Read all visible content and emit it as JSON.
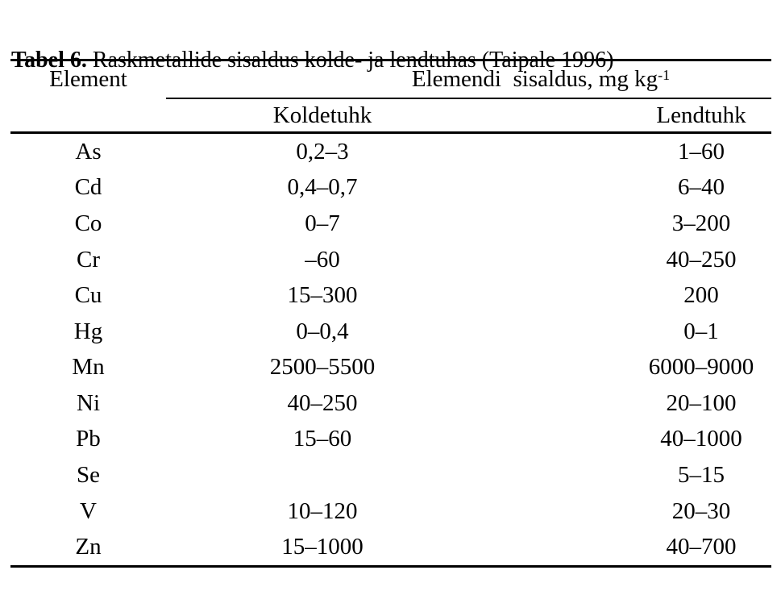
{
  "caption": {
    "label": "Tabel 6.",
    "text": " Raskmetallide sisaldus kolde- ja lendtuhas (Taipale 1996)"
  },
  "table": {
    "col1_header": "Element",
    "span_header": {
      "prefix": "Elemendi  sisaldus, mg kg",
      "superscript": "-1"
    },
    "sub_headers": {
      "koldetuhk": "Koldetuhk",
      "lendtuhk": "Lendtuhk"
    },
    "rows": [
      {
        "element": "As",
        "koldetuhk": "0,2–3",
        "lendtuhk": "1–60"
      },
      {
        "element": "Cd",
        "koldetuhk": "0,4–0,7",
        "lendtuhk": "6–40"
      },
      {
        "element": "Co",
        "koldetuhk": "0–7",
        "lendtuhk": "3–200"
      },
      {
        "element": "Cr",
        "koldetuhk": "–60",
        "lendtuhk": "40–250"
      },
      {
        "element": "Cu",
        "koldetuhk": "15–300",
        "lendtuhk": "200"
      },
      {
        "element": "Hg",
        "koldetuhk": "0–0,4",
        "lendtuhk": "0–1"
      },
      {
        "element": "Mn",
        "koldetuhk": "2500–5500",
        "lendtuhk": "6000–9000"
      },
      {
        "element": "Ni",
        "koldetuhk": "40–250",
        "lendtuhk": "20–100"
      },
      {
        "element": "Pb",
        "koldetuhk": "15–60",
        "lendtuhk": "40–1000"
      },
      {
        "element": "Se",
        "koldetuhk": "",
        "lendtuhk": "5–15"
      },
      {
        "element": "V",
        "koldetuhk": "10–120",
        "lendtuhk": "20–30"
      },
      {
        "element": "Zn",
        "koldetuhk": "15–1000",
        "lendtuhk": "40–700"
      }
    ]
  },
  "colors": {
    "text": "#000000",
    "background": "#ffffff",
    "rule": "#000000"
  }
}
